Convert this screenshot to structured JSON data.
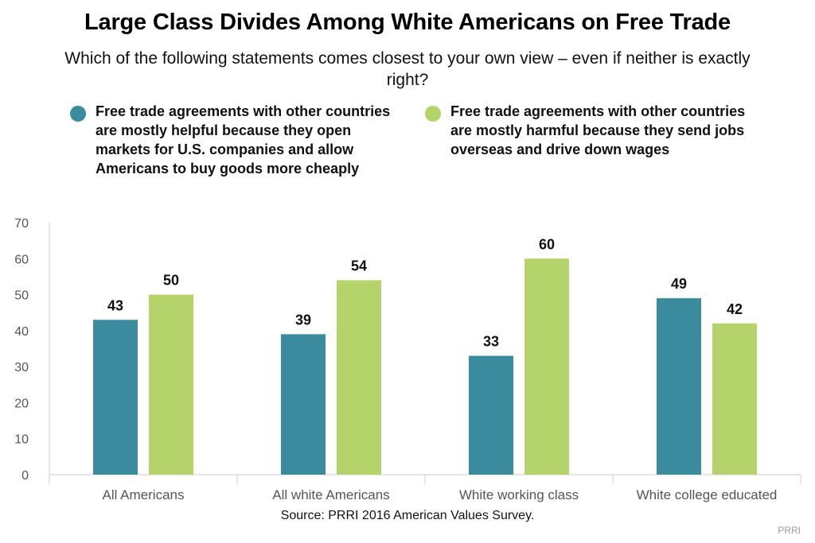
{
  "title": "Large Class Divides Among White Americans on Free Trade",
  "subtitle": "Which of the following statements comes closest to your own view – even if neither is exactly right?",
  "source": "Source: PRRI 2016 American Values Survey.",
  "credit": "PRRI",
  "colors": {
    "helpful": "#3b8b9e",
    "harmful": "#b4d36a",
    "axis": "#cccccc",
    "tick_text": "#555555"
  },
  "chart_data": {
    "type": "bar",
    "categories": [
      "All Americans",
      "All white Americans",
      "White working class",
      "White college educated"
    ],
    "series": [
      {
        "name": "Free trade agreements with other countries are mostly helpful because they open markets for U.S. companies and allow Americans to buy goods more cheaply",
        "values": [
          43,
          39,
          33,
          49
        ],
        "color": "#3b8b9e"
      },
      {
        "name": "Free trade agreements with other countries are mostly harmful because they send jobs overseas and drive down wages",
        "values": [
          50,
          54,
          60,
          42
        ],
        "color": "#b4d36a"
      }
    ],
    "ylim": [
      0,
      70
    ],
    "yticks": [
      0,
      10,
      20,
      30,
      40,
      50,
      60,
      70
    ],
    "grid": false,
    "legend_position": "top"
  }
}
